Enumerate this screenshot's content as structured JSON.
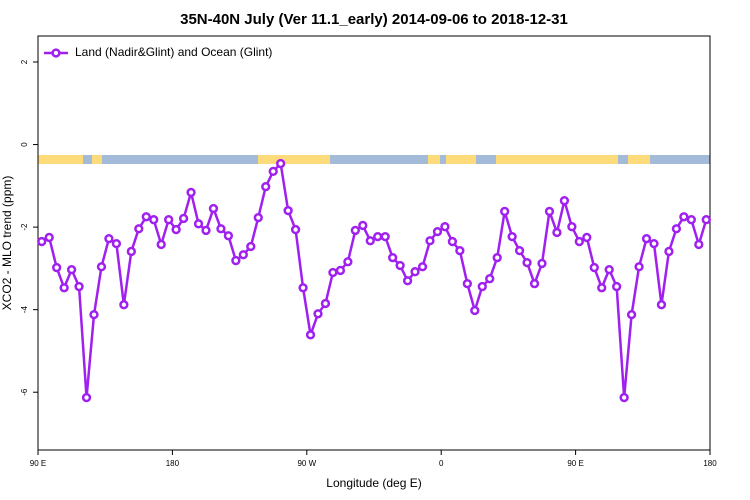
{
  "chart_data": {
    "type": "line",
    "title": "35N-40N July (Ver 11.1_early)   2014-09-06 to 2018-12-31",
    "x_label": "Longitude (deg E)",
    "y_label": "XCO2 - MLO trend (ppm)",
    "legend": "top-left",
    "xlim": [
      90,
      540
    ],
    "ylim": [
      -7.4,
      2.63
    ],
    "xticks": [
      {
        "value": 90,
        "label": "90 E"
      },
      {
        "value": 180,
        "label": "180"
      },
      {
        "value": 270,
        "label": "90 W"
      },
      {
        "value": 360,
        "label": "0"
      },
      {
        "value": 450,
        "label": "90 E"
      },
      {
        "value": 540,
        "label": "180"
      }
    ],
    "yticks": [
      2,
      0,
      -2,
      -4,
      -6
    ],
    "x": [
      92.5,
      97.5,
      102.5,
      107.5,
      112.5,
      117.5,
      122.5,
      127.5,
      132.5,
      137.5,
      142.5,
      147.5,
      152.5,
      157.5,
      162.5,
      167.5,
      172.5,
      177.5,
      182.5,
      187.5,
      192.5,
      197.5,
      202.5,
      207.5,
      212.5,
      217.5,
      222.5,
      227.5,
      232.5,
      237.5,
      242.5,
      247.5,
      252.5,
      257.5,
      262.5,
      267.5,
      272.5,
      277.5,
      282.5,
      287.5,
      292.5,
      297.5,
      302.5,
      307.5,
      312.5,
      317.5,
      322.5,
      327.5,
      332.5,
      337.5,
      342.5,
      347.5,
      352.5,
      357.5,
      362.5,
      367.5,
      372.5,
      377.5,
      382.5,
      387.5,
      392.5,
      397.5,
      402.5,
      407.5,
      412.5,
      417.5,
      422.5,
      427.5,
      432.5,
      437.5,
      442.5,
      447.5,
      452.5,
      457.5,
      462.5,
      467.5,
      472.5,
      477.5,
      482.5,
      487.5,
      492.5,
      497.5,
      502.5,
      507.5,
      512.5,
      517.5,
      522.5,
      527.5,
      532.5,
      537.5
    ],
    "series": [
      {
        "name": "Land (Nadir&Glint) and Ocean (Glint)",
        "color": "#a020f0",
        "values": [
          -2.35,
          -2.25,
          -2.98,
          -3.47,
          -3.03,
          -3.44,
          -6.13,
          -4.12,
          -2.96,
          -2.28,
          -2.4,
          -3.88,
          -2.59,
          -2.04,
          -1.75,
          -1.82,
          -2.42,
          -1.82,
          -2.06,
          -1.79,
          -1.16,
          -1.92,
          -2.08,
          -1.55,
          -2.04,
          -2.21,
          -2.81,
          -2.67,
          -2.47,
          -1.77,
          -1.02,
          -0.65,
          -0.46,
          -1.6,
          -2.06,
          -3.47,
          -4.61,
          -4.1,
          -3.85,
          -3.1,
          -3.05,
          -2.84,
          -2.08,
          -1.96,
          -2.33,
          -2.23,
          -2.23,
          -2.74,
          -2.93,
          -3.3,
          -3.08,
          -2.96,
          -2.33,
          -2.11,
          -1.99,
          -2.35,
          -2.57,
          -3.37,
          -4.02,
          -3.44,
          -3.25,
          -2.74,
          -1.62,
          -2.23,
          -2.57,
          -2.86,
          -3.37,
          -2.88,
          -1.62,
          -2.13,
          -1.36,
          -1.99,
          -2.35,
          -2.25,
          -2.98,
          -3.47,
          -3.03,
          -3.44,
          -6.13,
          -4.12,
          -2.96,
          -2.28,
          -2.4,
          -3.88,
          -2.59,
          -2.04,
          -1.75,
          -1.82,
          -2.42,
          -1.82
        ]
      }
    ]
  }
}
